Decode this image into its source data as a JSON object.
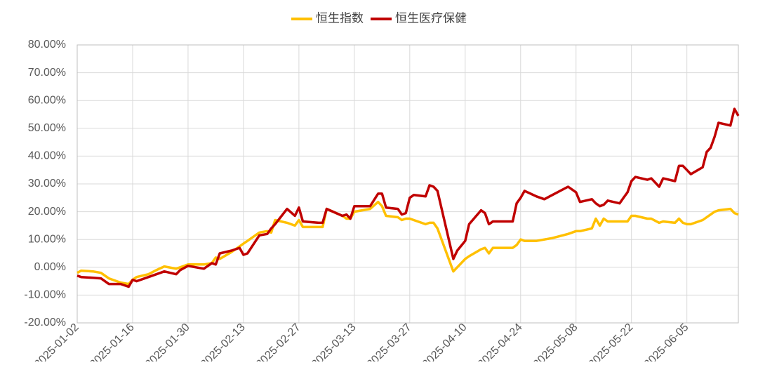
{
  "chart_data": {
    "type": "line",
    "x": [
      "2025-01-02",
      "2025-01-03",
      "2025-01-06",
      "2025-01-08",
      "2025-01-10",
      "2025-01-13",
      "2025-01-15",
      "2025-01-16",
      "2025-01-17",
      "2025-01-20",
      "2025-01-22",
      "2025-01-24",
      "2025-01-27",
      "2025-01-28",
      "2025-01-30",
      "2025-02-03",
      "2025-02-05",
      "2025-02-06",
      "2025-02-07",
      "2025-02-10",
      "2025-02-12",
      "2025-02-13",
      "2025-02-14",
      "2025-02-17",
      "2025-02-19",
      "2025-02-20",
      "2025-02-21",
      "2025-02-24",
      "2025-02-26",
      "2025-02-27",
      "2025-02-28",
      "2025-03-04",
      "2025-03-05",
      "2025-03-06",
      "2025-03-10",
      "2025-03-11",
      "2025-03-12",
      "2025-03-13",
      "2025-03-17",
      "2025-03-19",
      "2025-03-20",
      "2025-03-21",
      "2025-03-24",
      "2025-03-25",
      "2025-03-26",
      "2025-03-27",
      "2025-03-28",
      "2025-03-31",
      "2025-04-01",
      "2025-04-02",
      "2025-04-03",
      "2025-04-07",
      "2025-04-08",
      "2025-04-10",
      "2025-04-11",
      "2025-04-14",
      "2025-04-15",
      "2025-04-16",
      "2025-04-17",
      "2025-04-22",
      "2025-04-23",
      "2025-04-24",
      "2025-04-25",
      "2025-04-28",
      "2025-04-30",
      "2025-05-02",
      "2025-05-06",
      "2025-05-08",
      "2025-05-09",
      "2025-05-12",
      "2025-05-13",
      "2025-05-14",
      "2025-05-15",
      "2025-05-16",
      "2025-05-19",
      "2025-05-20",
      "2025-05-21",
      "2025-05-22",
      "2025-05-23",
      "2025-05-26",
      "2025-05-27",
      "2025-05-29",
      "2025-05-30",
      "2025-06-02",
      "2025-06-03",
      "2025-06-04",
      "2025-06-05",
      "2025-06-06",
      "2025-06-09",
      "2025-06-10",
      "2025-06-11",
      "2025-06-12",
      "2025-06-13",
      "2025-06-16",
      "2025-06-17",
      "2025-06-18"
    ],
    "series": [
      {
        "name": "恒生指数",
        "color": "#ffc000",
        "values": [
          -2,
          -1.2,
          -1.5,
          -2,
          -4,
          -5.5,
          -6,
          -4.5,
          -3.5,
          -2.5,
          -1,
          0.3,
          -0.5,
          0,
          1,
          1,
          1.5,
          3.5,
          3,
          5.5,
          7.5,
          8.5,
          9.5,
          12.5,
          13,
          12.5,
          17,
          16,
          15,
          17,
          14.5,
          14.5,
          14.5,
          21,
          18.5,
          17.5,
          17.5,
          20,
          21,
          23.5,
          22,
          18.5,
          18,
          17,
          17.5,
          17.5,
          17,
          15.5,
          16,
          16,
          14,
          -1.5,
          0,
          3,
          4,
          6.5,
          7,
          5,
          7,
          7,
          8,
          10,
          9.5,
          9.5,
          10,
          10.5,
          12,
          13,
          13,
          14,
          17.5,
          15,
          17.5,
          16.5,
          16.5,
          16.5,
          16.5,
          18.5,
          18.5,
          17.5,
          17.5,
          16,
          16.5,
          16,
          17.5,
          16,
          15.5,
          15.5,
          17,
          18,
          19,
          20,
          20.5,
          21,
          19.5,
          19
        ]
      },
      {
        "name": "恒生医疗保健",
        "color": "#c00000",
        "values": [
          -3,
          -3.5,
          -3.8,
          -4,
          -6,
          -6,
          -7,
          -4.5,
          -5,
          -3.5,
          -2.5,
          -1.5,
          -2.5,
          -1,
          0.5,
          -0.5,
          1.5,
          1,
          5,
          6,
          7,
          4.5,
          5,
          11.5,
          12,
          14,
          15.5,
          21,
          18.5,
          21.5,
          16.5,
          16,
          16,
          21,
          18.5,
          19,
          17.5,
          22,
          22,
          26.5,
          26.5,
          21.5,
          21,
          19,
          19.5,
          25,
          26,
          25.5,
          29.5,
          29,
          27.5,
          3,
          6,
          9.5,
          15.5,
          20.5,
          19.5,
          15.5,
          16.5,
          16.5,
          23,
          25,
          27.5,
          25.5,
          24.5,
          26,
          29,
          27,
          23.5,
          24.5,
          23,
          22,
          22.5,
          24,
          23,
          25,
          27,
          31,
          32.5,
          31.5,
          32,
          29,
          32,
          31,
          36.5,
          36.5,
          35,
          33.5,
          36,
          41.5,
          43,
          47,
          52,
          51,
          57,
          54.5
        ]
      }
    ],
    "xlim": [
      "2025-01-02",
      "2025-06-18"
    ],
    "xticks": [
      "2025-01-02",
      "2025-01-16",
      "2025-01-30",
      "2025-02-13",
      "2025-02-27",
      "2025-03-13",
      "2025-03-27",
      "2025-04-10",
      "2025-04-24",
      "2025-05-08",
      "2025-05-22",
      "2025-06-05"
    ],
    "ylim": [
      -20,
      80
    ],
    "yticks": [
      {
        "value": -20,
        "label": "-20.00%"
      },
      {
        "value": -10,
        "label": "-10.00%"
      },
      {
        "value": 0,
        "label": "0.00%"
      },
      {
        "value": 10,
        "label": "10.00%"
      },
      {
        "value": 20,
        "label": "20.00%"
      },
      {
        "value": 30,
        "label": "30.00%"
      },
      {
        "value": 40,
        "label": "40.00%"
      },
      {
        "value": 50,
        "label": "50.00%"
      },
      {
        "value": 60,
        "label": "60.00%"
      },
      {
        "value": 70,
        "label": "70.00%"
      },
      {
        "value": 80,
        "label": "80.00%"
      }
    ],
    "grid": true,
    "legend": "top"
  }
}
